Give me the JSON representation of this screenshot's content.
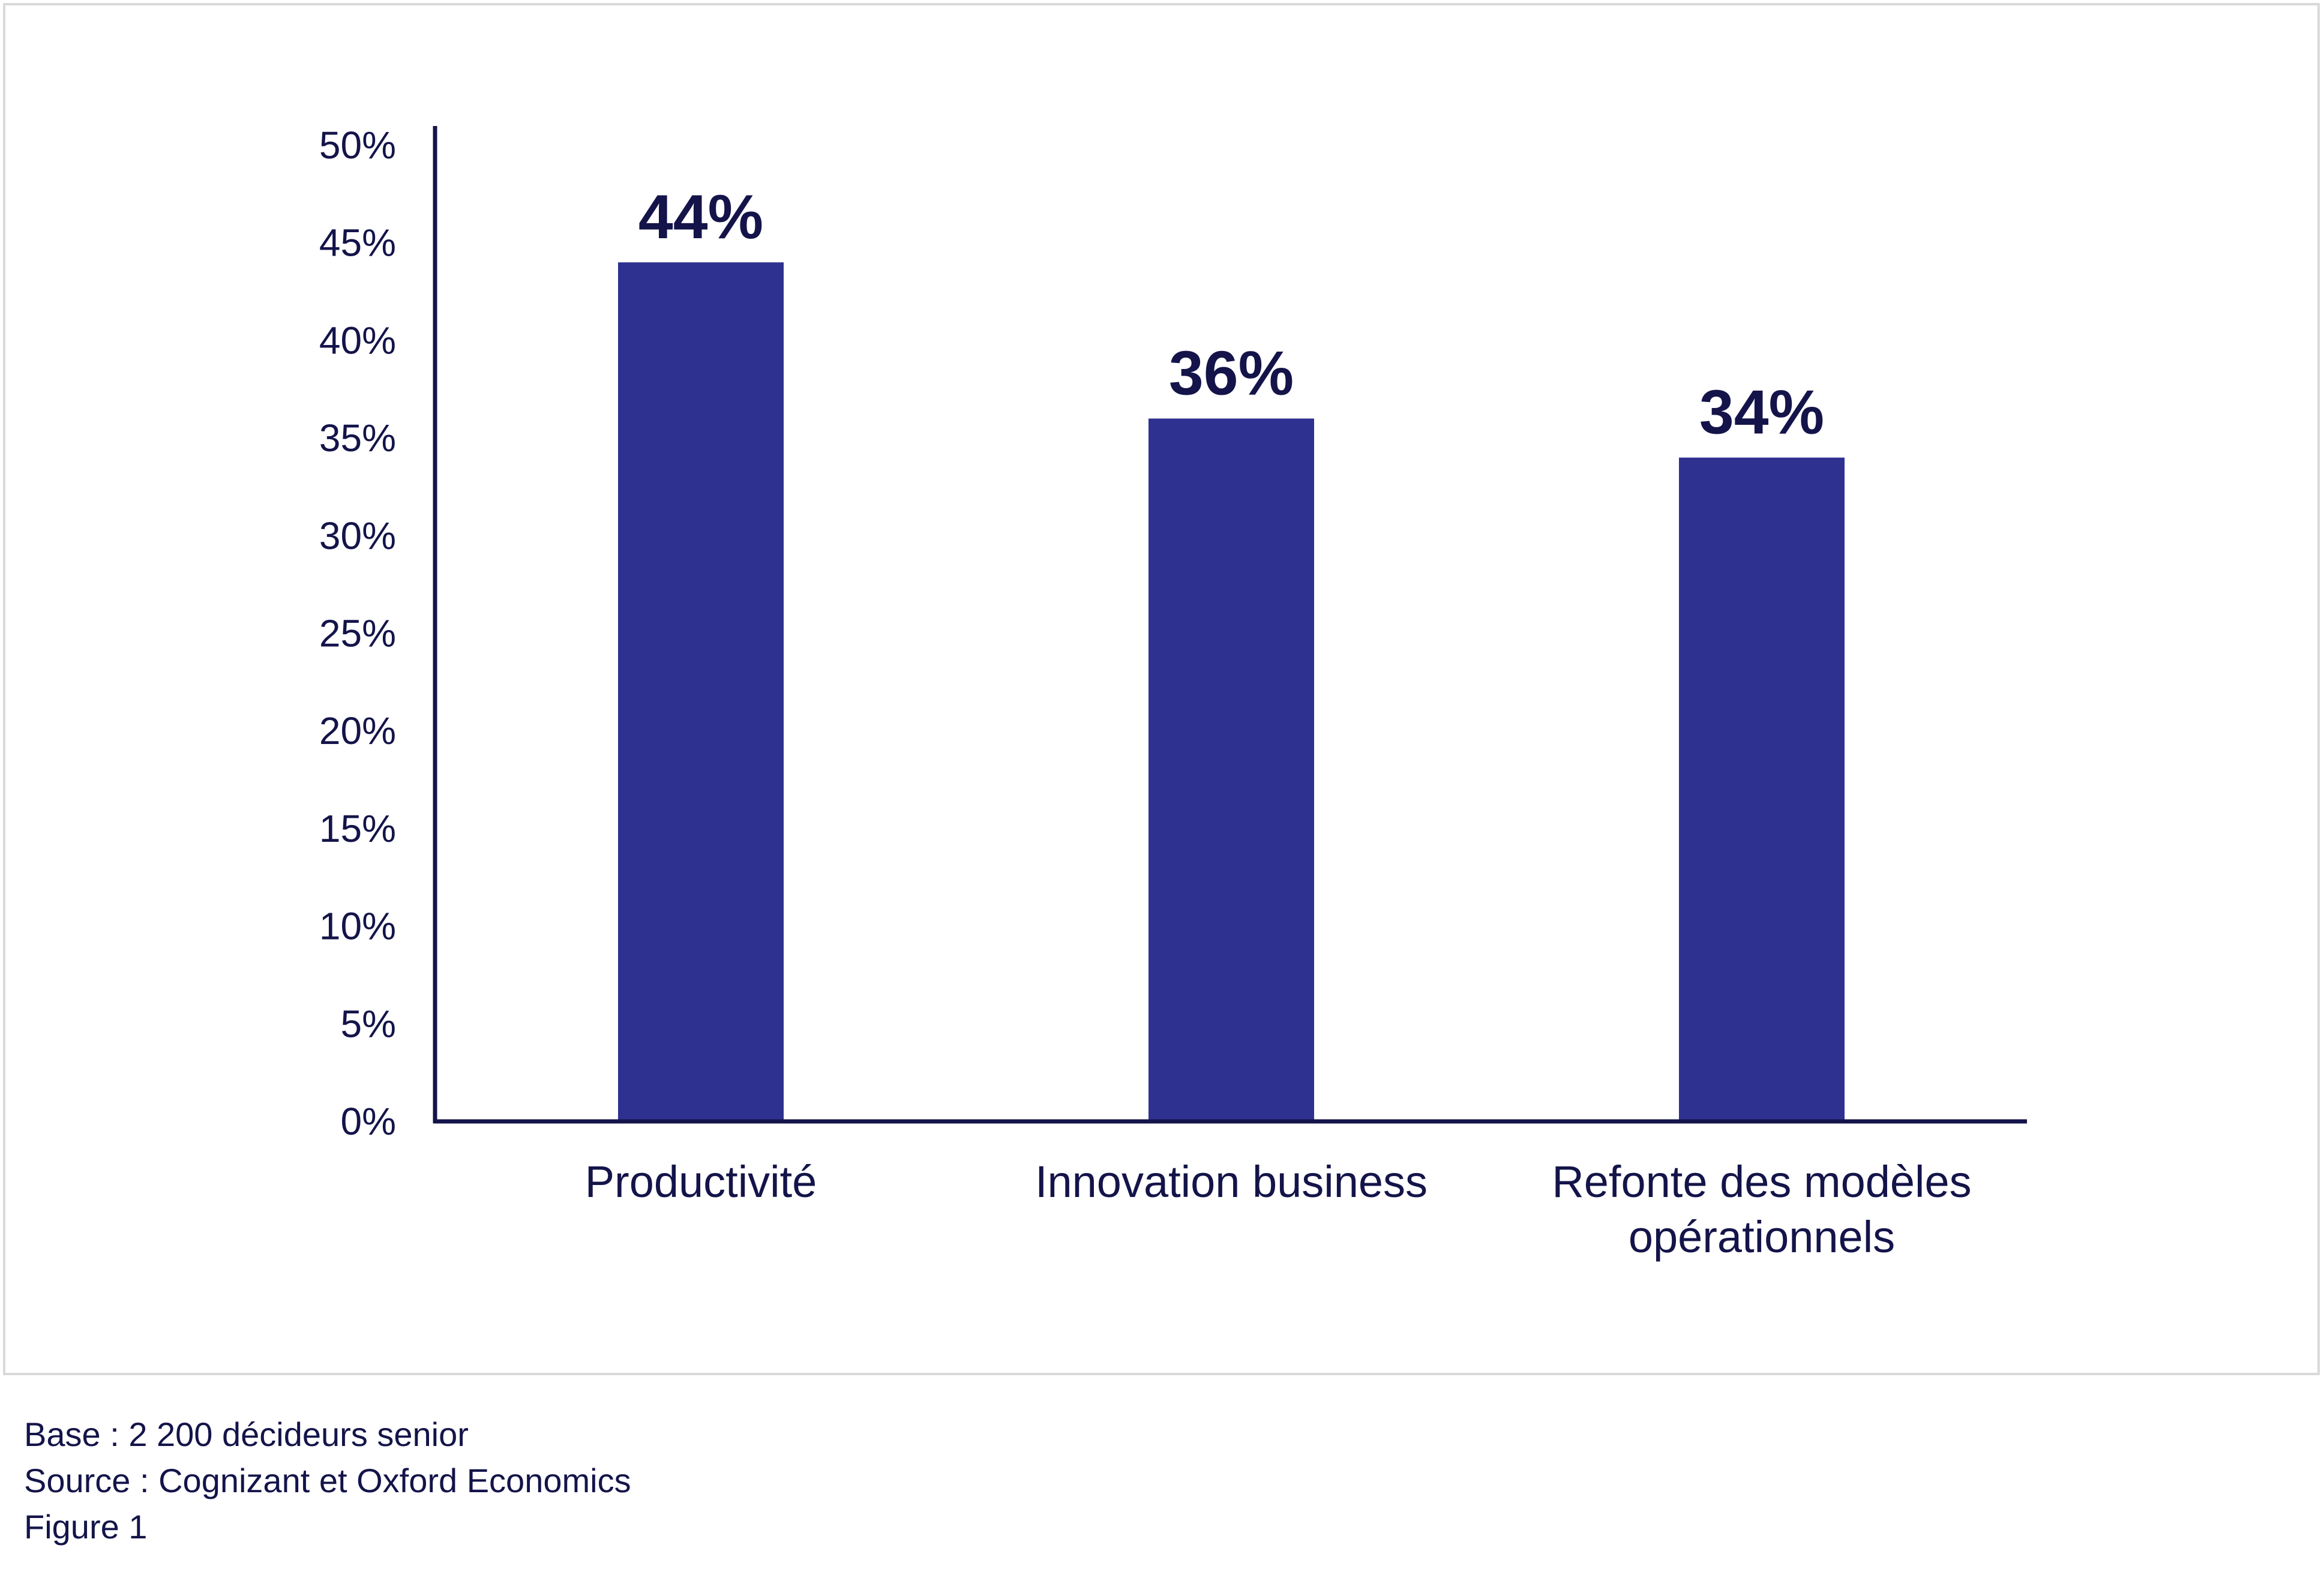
{
  "chart_data": {
    "type": "bar",
    "categories": [
      "Productivité",
      "Innovation business",
      [
        "Refonte des modèles",
        "opérationnels"
      ]
    ],
    "values": [
      44,
      36,
      34
    ],
    "value_labels": [
      "44%",
      "36%",
      "34%"
    ],
    "ylim": [
      0,
      50
    ],
    "yticks": [
      0,
      5,
      10,
      15,
      20,
      25,
      30,
      35,
      40,
      45,
      50
    ],
    "ytick_labels": [
      "0%",
      "5%",
      "10%",
      "15%",
      "20%",
      "25%",
      "30%",
      "35%",
      "40%",
      "45%",
      "50%"
    ],
    "grid": false,
    "bar_color": "#2e3190",
    "axis_color": "#14144a",
    "text_color": "#14144a"
  },
  "footnotes": {
    "base": "Base : 2 200 décideurs senior",
    "source": "Source : Cognizant et Oxford Economics",
    "figure": "Figure 1"
  }
}
